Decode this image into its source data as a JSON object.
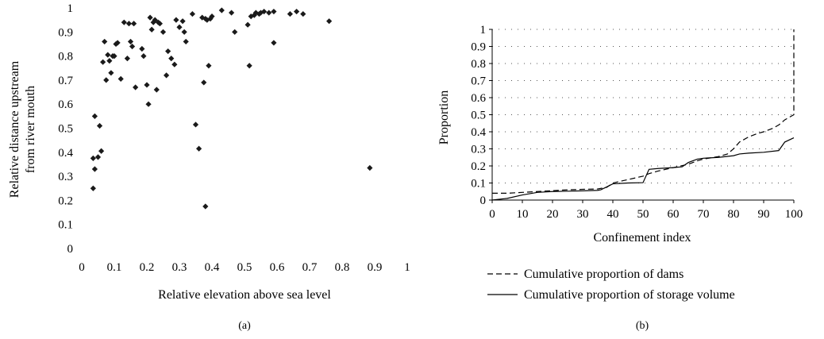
{
  "chart_data": [
    {
      "type": "scatter",
      "panel_label": "(a)",
      "xlabel": "Relative elevation above sea level",
      "ylabel_lines": [
        "Relative distance upstream",
        "from river mouth"
      ],
      "xlim": [
        0,
        1
      ],
      "ylim": [
        0,
        1
      ],
      "xticks": [
        "0",
        "0.1",
        "0.2",
        "0.3",
        "0.4",
        "0.5",
        "0.6",
        "0.7",
        "0.8",
        "0.9",
        "1"
      ],
      "yticks": [
        "0",
        "0.1",
        "0.2",
        "0.3",
        "0.4",
        "0.5",
        "0.6",
        "0.7",
        "0.8",
        "0.9",
        "1"
      ],
      "marker_color": "#1a1a1a",
      "points": [
        [
          0.035,
          0.375
        ],
        [
          0.04,
          0.33
        ],
        [
          0.035,
          0.25
        ],
        [
          0.04,
          0.55
        ],
        [
          0.05,
          0.38
        ],
        [
          0.055,
          0.51
        ],
        [
          0.06,
          0.405
        ],
        [
          0.065,
          0.775
        ],
        [
          0.07,
          0.86
        ],
        [
          0.075,
          0.7
        ],
        [
          0.08,
          0.805
        ],
        [
          0.085,
          0.78
        ],
        [
          0.09,
          0.73
        ],
        [
          0.095,
          0.8
        ],
        [
          0.1,
          0.8
        ],
        [
          0.105,
          0.85
        ],
        [
          0.11,
          0.855
        ],
        [
          0.12,
          0.705
        ],
        [
          0.13,
          0.94
        ],
        [
          0.14,
          0.79
        ],
        [
          0.145,
          0.935
        ],
        [
          0.15,
          0.86
        ],
        [
          0.155,
          0.84
        ],
        [
          0.16,
          0.935
        ],
        [
          0.165,
          0.67
        ],
        [
          0.185,
          0.83
        ],
        [
          0.19,
          0.8
        ],
        [
          0.2,
          0.68
        ],
        [
          0.205,
          0.6
        ],
        [
          0.21,
          0.96
        ],
        [
          0.215,
          0.91
        ],
        [
          0.22,
          0.94
        ],
        [
          0.225,
          0.95
        ],
        [
          0.23,
          0.66
        ],
        [
          0.235,
          0.94
        ],
        [
          0.24,
          0.935
        ],
        [
          0.25,
          0.9
        ],
        [
          0.26,
          0.72
        ],
        [
          0.265,
          0.82
        ],
        [
          0.275,
          0.79
        ],
        [
          0.285,
          0.765
        ],
        [
          0.29,
          0.95
        ],
        [
          0.3,
          0.92
        ],
        [
          0.31,
          0.945
        ],
        [
          0.315,
          0.9
        ],
        [
          0.32,
          0.86
        ],
        [
          0.34,
          0.975
        ],
        [
          0.35,
          0.515
        ],
        [
          0.36,
          0.415
        ],
        [
          0.37,
          0.96
        ],
        [
          0.375,
          0.69
        ],
        [
          0.38,
          0.955
        ],
        [
          0.385,
          0.95
        ],
        [
          0.39,
          0.76
        ],
        [
          0.395,
          0.955
        ],
        [
          0.4,
          0.965
        ],
        [
          0.38,
          0.175
        ],
        [
          0.43,
          0.99
        ],
        [
          0.46,
          0.98
        ],
        [
          0.47,
          0.9
        ],
        [
          0.51,
          0.93
        ],
        [
          0.515,
          0.76
        ],
        [
          0.52,
          0.965
        ],
        [
          0.53,
          0.97
        ],
        [
          0.535,
          0.98
        ],
        [
          0.545,
          0.975
        ],
        [
          0.55,
          0.98
        ],
        [
          0.56,
          0.985
        ],
        [
          0.575,
          0.98
        ],
        [
          0.59,
          0.985
        ],
        [
          0.59,
          0.855
        ],
        [
          0.64,
          0.975
        ],
        [
          0.66,
          0.985
        ],
        [
          0.68,
          0.975
        ],
        [
          0.76,
          0.945
        ],
        [
          0.885,
          0.335
        ]
      ]
    },
    {
      "type": "line",
      "panel_label": "(b)",
      "xlabel": "Confinement index",
      "ylabel": "Proportion",
      "xlim": [
        0,
        100
      ],
      "ylim": [
        0,
        1
      ],
      "xticks": [
        "0",
        "10",
        "20",
        "30",
        "40",
        "50",
        "60",
        "70",
        "80",
        "90",
        "100"
      ],
      "yticks": [
        "0",
        "0.1",
        "0.2",
        "0.3",
        "0.4",
        "0.5",
        "0.6",
        "0.7",
        "0.8",
        "0.9",
        "1"
      ],
      "grid": "dotted horizontal",
      "legend_position": "bottom",
      "series": [
        {
          "name": "Cumulative proportion of dams",
          "style": "dashed",
          "x": [
            0,
            5,
            10,
            15,
            20,
            25,
            30,
            35,
            38,
            40,
            45,
            50,
            52,
            55,
            60,
            65,
            68,
            70,
            75,
            78,
            80,
            82,
            85,
            88,
            90,
            93,
            95,
            97,
            99,
            100,
            100
          ],
          "y": [
            0.04,
            0.04,
            0.045,
            0.05,
            0.055,
            0.06,
            0.063,
            0.065,
            0.075,
            0.1,
            0.12,
            0.14,
            0.155,
            0.17,
            0.19,
            0.21,
            0.23,
            0.24,
            0.255,
            0.27,
            0.3,
            0.34,
            0.37,
            0.39,
            0.4,
            0.42,
            0.44,
            0.47,
            0.49,
            0.5,
            1.0
          ]
        },
        {
          "name": "Cumulative proportion of storage volume",
          "style": "solid",
          "x": [
            0,
            5,
            10,
            15,
            20,
            25,
            30,
            35,
            36,
            40,
            45,
            50,
            52,
            55,
            60,
            63,
            65,
            68,
            70,
            75,
            80,
            82,
            85,
            90,
            95,
            97,
            100
          ],
          "y": [
            0.0,
            0.01,
            0.03,
            0.045,
            0.05,
            0.052,
            0.054,
            0.057,
            0.06,
            0.095,
            0.1,
            0.102,
            0.18,
            0.185,
            0.19,
            0.195,
            0.22,
            0.24,
            0.245,
            0.25,
            0.26,
            0.27,
            0.275,
            0.28,
            0.29,
            0.34,
            0.365
          ]
        }
      ]
    }
  ]
}
